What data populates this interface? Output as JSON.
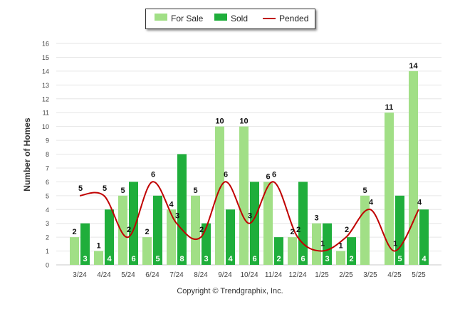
{
  "legend": {
    "for_sale": "For Sale",
    "sold": "Sold",
    "pended": "Pended"
  },
  "colors": {
    "for_sale": "#a1df86",
    "sold": "#1fae3b",
    "pended": "#c00000"
  },
  "footer": {
    "copyright": "Copyright © Trendgraphix, Inc."
  },
  "chart_data": {
    "type": "bar",
    "ylabel": "Number of Homes",
    "ylim": [
      0,
      16
    ],
    "yticks": [
      "0",
      "1",
      "2",
      "3",
      "4",
      "5",
      "6",
      "7",
      "8",
      "9",
      "10",
      "11",
      "12",
      "13",
      "14",
      "15",
      "16"
    ],
    "categories": [
      "3/24",
      "4/24",
      "5/24",
      "6/24",
      "7/24",
      "8/24",
      "9/24",
      "10/24",
      "11/24",
      "12/24",
      "1/25",
      "2/25",
      "3/25",
      "4/25",
      "5/25"
    ],
    "series": [
      {
        "name": "For Sale",
        "type": "bar",
        "values": [
          2,
          1,
          5,
          2,
          4,
          5,
          10,
          10,
          6,
          2,
          3,
          1,
          5,
          11,
          14
        ]
      },
      {
        "name": "Sold",
        "type": "bar",
        "values": [
          3,
          4,
          6,
          5,
          8,
          3,
          4,
          6,
          2,
          6,
          3,
          2,
          0,
          5,
          4
        ]
      },
      {
        "name": "Pended",
        "type": "line",
        "values": [
          5,
          5,
          2,
          6,
          3,
          2,
          6,
          3,
          6,
          2,
          1,
          2,
          4,
          1,
          4
        ]
      }
    ],
    "labels": {
      "for_sale": [
        "2",
        "1",
        "5",
        "2",
        "4",
        "5",
        "10",
        "10",
        "6",
        "2",
        "3",
        "1",
        "5",
        "11",
        "14"
      ],
      "sold": [
        "3",
        "4",
        "6",
        "5",
        "8",
        "3",
        "4",
        "6",
        "2",
        "6",
        "3",
        "2",
        "0",
        "5",
        "4"
      ],
      "pended": [
        "5",
        "5",
        "2",
        "6",
        "3",
        "2",
        "6",
        "3",
        "6",
        "2",
        "1",
        "2",
        "4",
        "1",
        "4"
      ]
    },
    "grid": true,
    "legend_position": "top-center"
  }
}
